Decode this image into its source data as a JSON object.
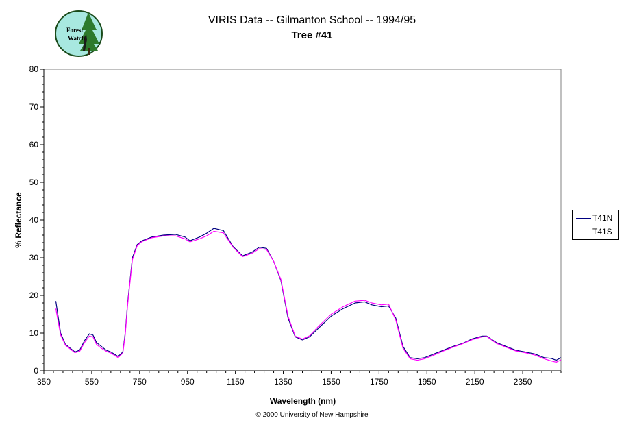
{
  "header": {
    "title": "VIRIS Data -- Gilmanton School -- 1994/95",
    "subtitle": "Tree #41"
  },
  "logo": {
    "icon": "forest-watch-logo-icon",
    "text_line1": "Forest",
    "text_line2": "Watch"
  },
  "footer": {
    "copyright": "© 2000 University of New Hampshire"
  },
  "colors": {
    "T41N": "#000080",
    "T41S": "#ff00ff",
    "logo_fill": "#a8e8e0",
    "logo_tree": "#2d7a2d"
  },
  "chart_data": {
    "type": "line",
    "title": "VIRIS Data -- Gilmanton School -- 1994/95",
    "subtitle": "Tree #41",
    "xlabel": "Wavelength (nm)",
    "ylabel": "% Reflectance",
    "xlim": [
      350,
      2510
    ],
    "ylim": [
      0,
      80
    ],
    "xticks": [
      350,
      550,
      750,
      950,
      1150,
      1350,
      1550,
      1750,
      1950,
      2150,
      2350
    ],
    "yticks": [
      0,
      10,
      20,
      30,
      40,
      50,
      60,
      70,
      80
    ],
    "grid": false,
    "legend": "right",
    "series": [
      {
        "name": "T41N",
        "x": [
          400,
          420,
          440,
          460,
          480,
          500,
          520,
          540,
          555,
          570,
          590,
          610,
          630,
          660,
          680,
          690,
          700,
          720,
          740,
          760,
          800,
          850,
          900,
          940,
          960,
          1000,
          1030,
          1060,
          1100,
          1140,
          1180,
          1220,
          1250,
          1280,
          1310,
          1340,
          1370,
          1400,
          1430,
          1460,
          1500,
          1550,
          1600,
          1650,
          1690,
          1720,
          1760,
          1790,
          1820,
          1850,
          1880,
          1910,
          1940,
          1980,
          2020,
          2060,
          2100,
          2140,
          2180,
          2200,
          2240,
          2280,
          2320,
          2360,
          2400,
          2440,
          2470,
          2490,
          2510
        ],
        "values": [
          18.5,
          10,
          7,
          6,
          5,
          5.5,
          8,
          9.8,
          9.5,
          7.5,
          6.5,
          5.5,
          5,
          3.8,
          5,
          10,
          18,
          30,
          33.5,
          34.5,
          35.5,
          36,
          36.2,
          35.5,
          34.5,
          35.5,
          36.5,
          37.8,
          37.2,
          33,
          30.5,
          31.5,
          32.8,
          32.5,
          29,
          24,
          14,
          9,
          8.2,
          9,
          11.5,
          14.5,
          16.5,
          18,
          18.3,
          17.5,
          17,
          17.2,
          14,
          6.5,
          3.5,
          3.2,
          3.5,
          4.5,
          5.5,
          6.5,
          7.3,
          8.5,
          9.2,
          9.2,
          7.5,
          6.5,
          5.5,
          5,
          4.5,
          3.5,
          3.3,
          2.8,
          3.5
        ]
      },
      {
        "name": "T41S",
        "x": [
          400,
          420,
          440,
          460,
          480,
          500,
          520,
          540,
          555,
          570,
          590,
          610,
          630,
          660,
          680,
          690,
          700,
          720,
          740,
          760,
          800,
          850,
          900,
          940,
          960,
          1000,
          1030,
          1060,
          1100,
          1140,
          1180,
          1220,
          1250,
          1280,
          1310,
          1340,
          1370,
          1400,
          1430,
          1460,
          1500,
          1550,
          1600,
          1650,
          1690,
          1720,
          1760,
          1790,
          1820,
          1850,
          1880,
          1910,
          1940,
          1980,
          2020,
          2060,
          2100,
          2140,
          2180,
          2200,
          2240,
          2280,
          2320,
          2360,
          2400,
          2440,
          2470,
          2490,
          2510
        ],
        "values": [
          16.5,
          9.5,
          6.8,
          5.8,
          4.8,
          5.2,
          7.5,
          9.2,
          9,
          7,
          6,
          5.2,
          4.7,
          3.5,
          4.7,
          9.5,
          17.5,
          29.5,
          33.2,
          34.3,
          35.3,
          35.8,
          35.8,
          35,
          34.2,
          35,
          35.8,
          37,
          36.6,
          32.8,
          30.3,
          31.2,
          32.4,
          32.2,
          29,
          24.3,
          14.5,
          9.2,
          8.4,
          9.3,
          12,
          15,
          17,
          18.5,
          18.7,
          18,
          17.5,
          17.7,
          13.5,
          6,
          3.2,
          2.8,
          3.2,
          4.2,
          5.3,
          6.3,
          7.2,
          8.3,
          9,
          9.1,
          7.3,
          6.3,
          5.3,
          4.8,
          4.2,
          3.2,
          2.6,
          2.3,
          2.9
        ]
      }
    ]
  }
}
